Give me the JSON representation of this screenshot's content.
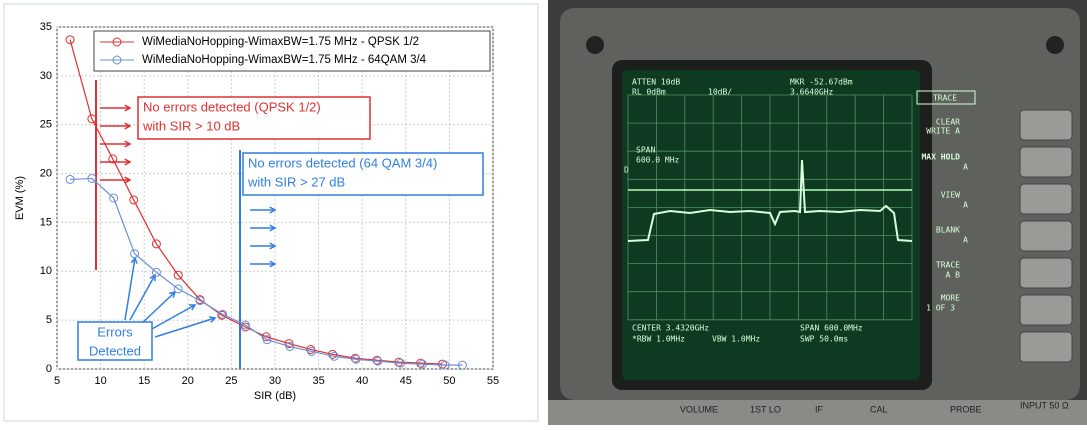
{
  "chart_data": {
    "type": "line",
    "xlabel": "SIR (dB)",
    "ylabel": "EVM (%)",
    "xlim": [
      5,
      55
    ],
    "xticks": [
      5,
      10,
      15,
      20,
      25,
      30,
      35,
      40,
      45,
      50,
      55
    ],
    "ylim": [
      0,
      35
    ],
    "yticks": [
      0,
      5,
      10,
      15,
      20,
      25,
      30,
      35
    ],
    "grid": true,
    "legend": "upper right",
    "series": [
      {
        "name": "WiMediaNoHopping-WimaxBW=1.75 MHz - QPSK 1/2",
        "color": "#e03030",
        "x": [
          6.5,
          9,
          11.4,
          13.8,
          16.4,
          18.9,
          21.4,
          23.9,
          26.6,
          29,
          31.6,
          34.1,
          36.6,
          39.2,
          41.7,
          44.2,
          46.7,
          49.2
        ],
        "values": [
          33.7,
          25.6,
          21.5,
          17.3,
          12.8,
          9.6,
          7.1,
          5.5,
          4.3,
          3.3,
          2.6,
          2.0,
          1.5,
          1.1,
          0.9,
          0.7,
          0.6,
          0.5
        ]
      },
      {
        "name": "WiMediaNoHopping-WimaxBW=1.75 MHz - 64QAM 3/4",
        "color": "#6a8fd8",
        "x": [
          6.5,
          9,
          11.5,
          13.9,
          16.4,
          18.9,
          21.4,
          24,
          26.6,
          29.1,
          31.7,
          34.2,
          36.8,
          39.3,
          41.8,
          44.4,
          46.9,
          49.5,
          51.5
        ],
        "values": [
          19.4,
          19.5,
          17.5,
          11.8,
          9.9,
          8.2,
          7.0,
          5.6,
          4.5,
          3.0,
          2.3,
          1.8,
          1.3,
          1.0,
          0.8,
          0.6,
          0.5,
          0.4,
          0.4
        ]
      }
    ],
    "annotations": [
      {
        "color": "#e03030",
        "text": [
          "No errors detected (QPSK 1/2)",
          "with SIR > 10 dB"
        ]
      },
      {
        "color": "#2f7fe0",
        "text": [
          "No errors detected (64 QAM 3/4)",
          "with SIR > 27 dB"
        ]
      },
      {
        "color": "#2f7fe0",
        "text": [
          "Errors",
          "Detected"
        ]
      }
    ]
  },
  "photo": {
    "top": [
      "ATTEN 10dB",
      "RL 0dBm",
      "10dB/",
      "MKR -52.67dBm",
      "3.6640GHz"
    ],
    "span_note": [
      "SPAN",
      "600.0 MHz"
    ],
    "display_line": "D",
    "softkeys": [
      "TRACE",
      "CLEAR",
      "WRITE A",
      "MAX HOLD",
      "A",
      "VIEW",
      "A",
      "BLANK",
      "A",
      "TRACE",
      "A B",
      "MORE",
      "1 OF 3"
    ],
    "bottom": [
      "CENTER 3.4320GHz",
      "SPAN 600.0MHz",
      "*RBW 1.0MHz",
      "VBW 1.0MHz",
      "SWP 50.0ms"
    ],
    "panel": [
      "VOLUME",
      "1ST LO",
      "IF",
      "CAL",
      "PROBE",
      "INPUT 50 Ω"
    ]
  }
}
